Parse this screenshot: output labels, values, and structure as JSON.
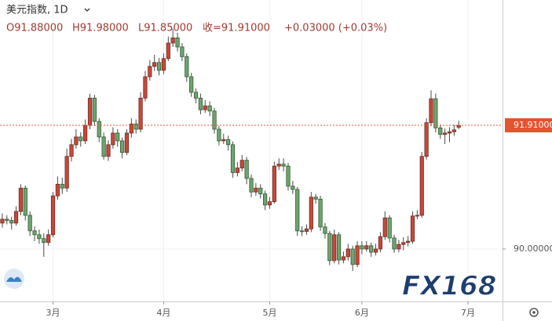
{
  "chart_data": {
    "type": "candlestick",
    "title": "美元指数, 1D",
    "ohlc_legend": [
      "O91.88000",
      "H91.98000",
      "L91.85000",
      "收=91.91000",
      "+0.03000 (+0.03%)"
    ],
    "watermark": "FX168",
    "categories": [
      null,
      null,
      null,
      null,
      null,
      null,
      null,
      null,
      null,
      null,
      null,
      "3月",
      null,
      null,
      null,
      null,
      null,
      null,
      null,
      null,
      null,
      null,
      null,
      null,
      null,
      null,
      null,
      null,
      null,
      null,
      null,
      null,
      null,
      null,
      null,
      "4月",
      null,
      null,
      null,
      null,
      null,
      null,
      null,
      null,
      null,
      null,
      null,
      null,
      null,
      null,
      null,
      null,
      null,
      null,
      null,
      null,
      null,
      null,
      "5月",
      null,
      null,
      null,
      null,
      null,
      null,
      null,
      null,
      null,
      null,
      null,
      null,
      null,
      null,
      null,
      null,
      null,
      null,
      null,
      "6月",
      null,
      null,
      null,
      null,
      null,
      null,
      null,
      null,
      null,
      null,
      null,
      null,
      null,
      null,
      null,
      null,
      null,
      null,
      null,
      null,
      null,
      null,
      "7月",
      null,
      null,
      null,
      null,
      null,
      null,
      null
    ],
    "open": [
      90.4,
      90.46,
      90.44,
      90.4,
      90.58,
      90.94,
      90.52,
      90.28,
      90.22,
      90.16,
      90.1,
      90.22,
      90.82,
      91.0,
      90.94,
      91.43,
      91.61,
      91.73,
      91.67,
      91.91,
      92.33,
      91.97,
      91.73,
      91.43,
      91.61,
      91.79,
      91.67,
      91.49,
      91.79,
      91.93,
      91.85,
      92.33,
      92.66,
      92.82,
      92.88,
      92.76,
      92.94,
      93.18,
      93.26,
      93.12,
      92.97,
      92.66,
      92.42,
      92.33,
      92.15,
      92.21,
      92.13,
      91.85,
      91.67,
      91.69,
      91.61,
      91.18,
      91.25,
      91.37,
      91.09,
      90.88,
      90.94,
      90.85,
      90.68,
      90.73,
      91.28,
      91.31,
      91.28,
      90.97,
      90.92,
      90.28,
      90.27,
      90.31,
      90.8,
      90.77,
      90.34,
      90.24,
      89.82,
      90.22,
      89.83,
      89.88,
      90.0,
      89.76,
      90.05,
      90.0,
      90.05,
      89.95,
      90.0,
      90.19,
      90.48,
      90.17,
      90.0,
      90.07,
      90.1,
      90.12,
      90.51,
      90.52,
      91.43,
      91.95,
      92.32,
      91.87,
      91.77,
      91.79,
      91.81,
      91.88,
      null,
      null,
      null,
      null,
      null,
      null,
      null,
      null,
      null
    ],
    "high": [
      90.55,
      90.52,
      90.5,
      90.66,
      91.0,
      90.98,
      90.58,
      90.35,
      90.3,
      90.24,
      90.3,
      90.88,
      91.12,
      91.1,
      91.55,
      91.7,
      91.85,
      91.8,
      92.0,
      92.4,
      92.38,
      92.02,
      91.8,
      91.68,
      91.88,
      91.85,
      91.72,
      91.85,
      92.02,
      92.0,
      92.42,
      92.75,
      92.92,
      93.0,
      92.95,
      93.02,
      93.28,
      93.4,
      93.34,
      93.18,
      93.02,
      92.72,
      92.48,
      92.4,
      92.3,
      92.28,
      92.18,
      91.9,
      91.78,
      91.75,
      91.66,
      91.34,
      91.45,
      91.42,
      91.15,
      91.02,
      91.0,
      90.9,
      90.8,
      91.35,
      91.4,
      91.4,
      91.33,
      91.05,
      90.96,
      90.35,
      90.38,
      90.88,
      90.85,
      90.82,
      90.4,
      90.28,
      90.3,
      90.26,
      89.96,
      90.08,
      90.05,
      90.12,
      90.12,
      90.12,
      90.1,
      90.08,
      90.26,
      90.58,
      90.52,
      90.22,
      90.14,
      90.18,
      90.2,
      90.58,
      90.6,
      91.5,
      92.02,
      92.45,
      92.4,
      91.92,
      91.86,
      91.88,
      91.92,
      91.98,
      null,
      null,
      null,
      null,
      null,
      null,
      null,
      null,
      null
    ],
    "low": [
      90.33,
      90.38,
      90.3,
      90.36,
      90.52,
      90.44,
      90.2,
      90.12,
      90.08,
      89.88,
      90.05,
      90.18,
      90.76,
      90.85,
      90.88,
      91.35,
      91.55,
      91.58,
      91.62,
      91.85,
      91.9,
      91.65,
      91.38,
      91.36,
      91.55,
      91.58,
      91.4,
      91.45,
      91.72,
      91.78,
      91.8,
      92.28,
      92.6,
      92.75,
      92.68,
      92.7,
      92.9,
      93.12,
      93.05,
      92.9,
      92.58,
      92.35,
      92.25,
      92.08,
      92.1,
      92.05,
      91.78,
      91.6,
      91.62,
      91.52,
      91.1,
      91.12,
      91.2,
      91.0,
      90.8,
      90.82,
      90.78,
      90.6,
      90.62,
      90.7,
      91.22,
      91.2,
      90.9,
      90.85,
      90.2,
      90.2,
      90.22,
      90.26,
      90.7,
      90.28,
      90.16,
      89.75,
      89.78,
      89.76,
      89.78,
      89.82,
      89.66,
      89.72,
      89.92,
      89.96,
      89.88,
      89.9,
      89.95,
      90.14,
      90.1,
      89.94,
      89.95,
      89.98,
      90.04,
      90.08,
      90.46,
      90.48,
      91.38,
      91.9,
      91.8,
      91.7,
      91.62,
      91.65,
      91.75,
      91.85,
      null,
      null,
      null,
      null,
      null,
      null,
      null,
      null,
      null
    ],
    "close": [
      90.46,
      90.44,
      90.4,
      90.58,
      90.94,
      90.52,
      90.28,
      90.22,
      90.16,
      90.1,
      90.22,
      90.82,
      91.0,
      90.94,
      91.43,
      91.61,
      91.73,
      91.67,
      91.91,
      92.33,
      91.97,
      91.73,
      91.43,
      91.61,
      91.79,
      91.67,
      91.49,
      91.79,
      91.93,
      91.85,
      92.33,
      92.66,
      92.82,
      92.88,
      92.76,
      92.94,
      93.18,
      93.26,
      93.12,
      92.97,
      92.66,
      92.42,
      92.33,
      92.15,
      92.21,
      92.13,
      91.85,
      91.67,
      91.69,
      91.61,
      91.18,
      91.25,
      91.37,
      91.09,
      90.88,
      90.94,
      90.85,
      90.68,
      90.73,
      91.28,
      91.31,
      91.28,
      90.97,
      90.92,
      90.28,
      90.27,
      90.31,
      90.8,
      90.77,
      90.34,
      90.24,
      89.82,
      90.22,
      89.83,
      89.88,
      90.0,
      89.76,
      90.05,
      90.0,
      90.05,
      89.95,
      90.0,
      90.19,
      90.48,
      90.17,
      90.0,
      90.07,
      90.1,
      90.12,
      90.51,
      90.52,
      91.43,
      91.95,
      92.32,
      91.87,
      91.77,
      91.79,
      91.81,
      91.84,
      91.91,
      null,
      null,
      null,
      null,
      null,
      null,
      null,
      null,
      null
    ],
    "up_color": "#c9483a",
    "down_color": "#6fa56f",
    "ylim": [
      89.19,
      93.845
    ],
    "yticks": [
      {
        "value": 90,
        "label": "90.00000"
      }
    ],
    "last_price": {
      "value": 91.91,
      "label": "91.91000",
      "color": "#e5532f"
    },
    "grid": true
  }
}
